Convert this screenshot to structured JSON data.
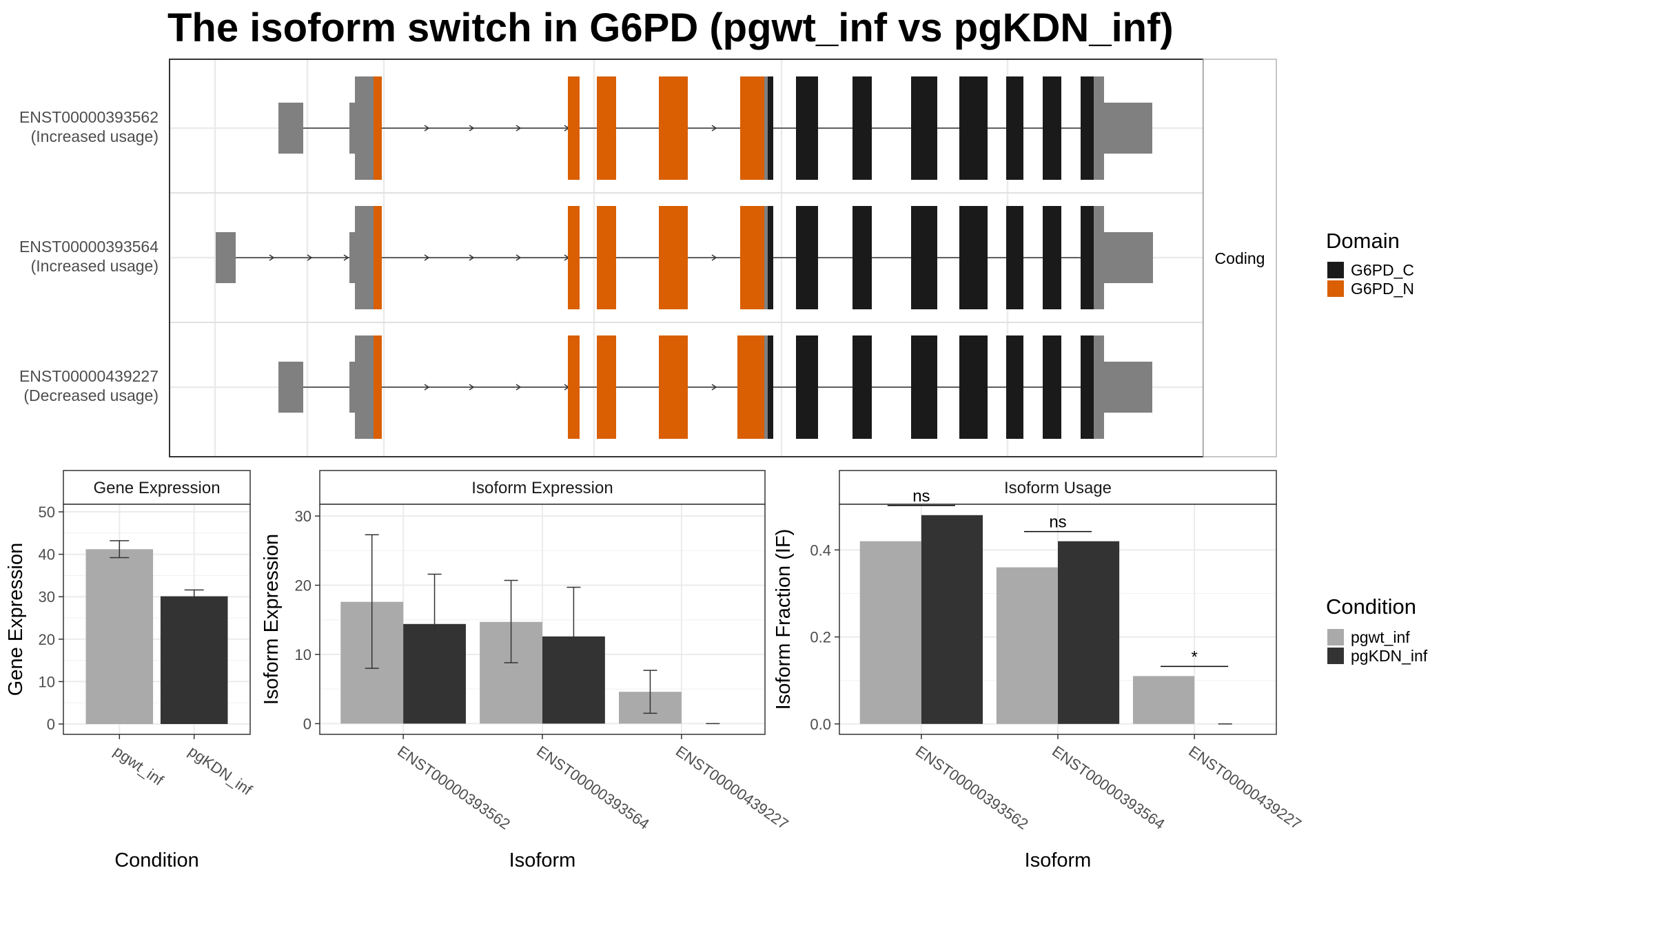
{
  "title": "The isoform switch in G6PD (pgwt_inf vs pgKDN_inf)",
  "colors": {
    "utr": "#808080",
    "G6PD_C": "#1a1a1a",
    "G6PD_N": "#d95f02",
    "pgwt_inf": "#aaaaaa",
    "pgKDN_inf": "#333333",
    "grid": "#ebebeb",
    "panel_border": "#333333"
  },
  "structure": {
    "facet_label": "Coding",
    "isoforms": [
      {
        "id": "ENST00000393562",
        "note": "(Increased usage)",
        "first_exon": "late"
      },
      {
        "id": "ENST00000393564",
        "note": "(Increased usage)",
        "first_exon": "early"
      },
      {
        "id": "ENST00000439227",
        "note": "(Decreased usage)",
        "first_exon": "late"
      }
    ],
    "legend": {
      "title": "Domain",
      "items": [
        {
          "label": "G6PD_C",
          "color": "#1a1a1a"
        },
        {
          "label": "G6PD_N",
          "color": "#d95f02"
        }
      ]
    }
  },
  "condition_legend": {
    "title": "Condition",
    "items": [
      {
        "label": "pgwt_inf",
        "color": "#aaaaaa"
      },
      {
        "label": "pgKDN_inf",
        "color": "#333333"
      }
    ]
  },
  "chart_data": [
    {
      "type": "bar",
      "strip": "Gene Expression",
      "xlabel": "Condition",
      "ylabel": "Gene Expression",
      "categories": [
        "pgwt_inf",
        "pgKDN_inf"
      ],
      "values": [
        41.2,
        30.1
      ],
      "errors": [
        [
          39.2,
          43.2
        ],
        [
          28.8,
          31.6
        ]
      ],
      "ylim": [
        0,
        50
      ],
      "yticks": [
        0,
        10,
        20,
        30,
        40,
        50
      ],
      "grid": true
    },
    {
      "type": "bar",
      "strip": "Isoform Expression",
      "xlabel": "Isoform",
      "ylabel": "Isoform Expression",
      "categories": [
        "ENST00000393562",
        "ENST00000393564",
        "ENST00000439227"
      ],
      "series": [
        {
          "name": "pgwt_inf",
          "values": [
            17.6,
            14.7,
            4.6
          ],
          "errors": [
            [
              8.0,
              27.3
            ],
            [
              8.8,
              20.7
            ],
            [
              1.5,
              7.7
            ]
          ]
        },
        {
          "name": "pgKDN_inf",
          "values": [
            14.4,
            12.6,
            0.0
          ],
          "errors": [
            [
              7.2,
              21.6
            ],
            [
              5.8,
              19.7
            ],
            [
              0.0,
              0.0
            ]
          ]
        }
      ],
      "ylim": [
        0,
        30
      ],
      "yticks": [
        0,
        10,
        20,
        30
      ],
      "grid": true
    },
    {
      "type": "bar",
      "strip": "Isoform Usage",
      "xlabel": "Isoform",
      "ylabel": "Isoform Fraction (IF)",
      "categories": [
        "ENST00000393562",
        "ENST00000393564",
        "ENST00000439227"
      ],
      "series": [
        {
          "name": "pgwt_inf",
          "values": [
            0.42,
            0.36,
            0.11
          ]
        },
        {
          "name": "pgKDN_inf",
          "values": [
            0.48,
            0.42,
            0.0
          ]
        }
      ],
      "significance": [
        "ns",
        "ns",
        "*"
      ],
      "yticks": [
        0.0,
        0.2,
        0.4
      ],
      "ytick_labels": [
        "0.0",
        "0.2",
        "0.4"
      ],
      "grid": true
    }
  ]
}
